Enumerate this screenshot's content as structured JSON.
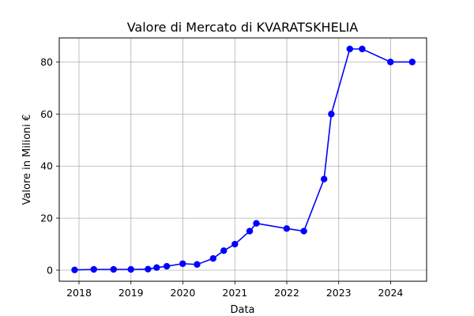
{
  "chart_data": {
    "type": "line",
    "title": "Valore di Mercato di KVARATSKHELIA",
    "xlabel": "Data",
    "ylabel": "Valore in Milioni €",
    "x_ticks": [
      "2018",
      "2019",
      "2020",
      "2021",
      "2022",
      "2023",
      "2024"
    ],
    "y_ticks": [
      "0",
      "20",
      "40",
      "60",
      "80"
    ],
    "xlim": [
      "2017-08-15",
      "2024-09-10"
    ],
    "ylim": [
      -4.25,
      89.25
    ],
    "grid": true,
    "series": [
      {
        "color": "#0000ff",
        "marker": "circle",
        "points": [
          {
            "date": "2017-12-01",
            "value": 0.1
          },
          {
            "date": "2018-04-15",
            "value": 0.3
          },
          {
            "date": "2018-09-01",
            "value": 0.3
          },
          {
            "date": "2019-01-01",
            "value": 0.3
          },
          {
            "date": "2019-05-01",
            "value": 0.4
          },
          {
            "date": "2019-07-01",
            "value": 1.0
          },
          {
            "date": "2019-09-10",
            "value": 1.5
          },
          {
            "date": "2019-12-31",
            "value": 2.5
          },
          {
            "date": "2020-04-10",
            "value": 2.2
          },
          {
            "date": "2020-08-01",
            "value": 4.5
          },
          {
            "date": "2020-10-15",
            "value": 7.5
          },
          {
            "date": "2021-01-01",
            "value": 10.0
          },
          {
            "date": "2021-04-15",
            "value": 15.0
          },
          {
            "date": "2021-06-01",
            "value": 18.0
          },
          {
            "date": "2021-12-31",
            "value": 16.0
          },
          {
            "date": "2022-05-01",
            "value": 15.0
          },
          {
            "date": "2022-09-20",
            "value": 35.0
          },
          {
            "date": "2022-11-10",
            "value": 60.0
          },
          {
            "date": "2023-03-20",
            "value": 85.0
          },
          {
            "date": "2023-06-15",
            "value": 85.0
          },
          {
            "date": "2023-12-31",
            "value": 80.0
          },
          {
            "date": "2024-06-01",
            "value": 80.0
          }
        ]
      }
    ]
  }
}
